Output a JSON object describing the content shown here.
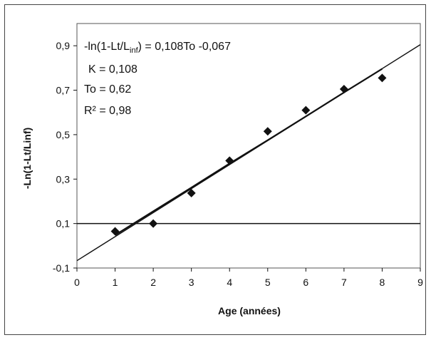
{
  "chart_data": {
    "type": "scatter",
    "xlabel": "Age (années)",
    "ylabel": "-Ln(1-Lt/Linf)",
    "xlim": [
      0,
      9
    ],
    "ylim": [
      -0.1,
      1.0
    ],
    "x_ticks": [
      "0",
      "1",
      "2",
      "3",
      "4",
      "5",
      "6",
      "7",
      "8",
      "9"
    ],
    "y_ticks": [
      "-0,1",
      "0,1",
      "0,3",
      "0,5",
      "0,7",
      "0,9"
    ],
    "grid": false,
    "series": [
      {
        "x": [
          1,
          2,
          3,
          4,
          5,
          6,
          7,
          8
        ],
        "y": [
          0.065,
          0.1,
          0.237,
          0.383,
          0.515,
          0.61,
          0.705,
          0.755
        ],
        "marker": "diamond"
      }
    ],
    "regression_line": {
      "slope": 0.108,
      "intercept": -0.067,
      "x_range": [
        0,
        9
      ]
    },
    "fit_curve": {
      "x": [
        1,
        2,
        3,
        4,
        5,
        6,
        7,
        8
      ],
      "y": [
        0.048,
        0.155,
        0.262,
        0.37,
        0.475,
        0.582,
        0.69,
        0.796
      ]
    },
    "reference_line": {
      "y": 0.1
    },
    "annotation": {
      "eq_prefix": "-ln(1-Lt/L",
      "eq_sub": "inf",
      "eq_suffix": ") = 0,108To -0,067",
      "k": "K = 0,108",
      "to": "To = 0,62",
      "r2": "R² = 0,98"
    },
    "colors": {
      "ink": "#111111",
      "frame": "#444444"
    }
  }
}
